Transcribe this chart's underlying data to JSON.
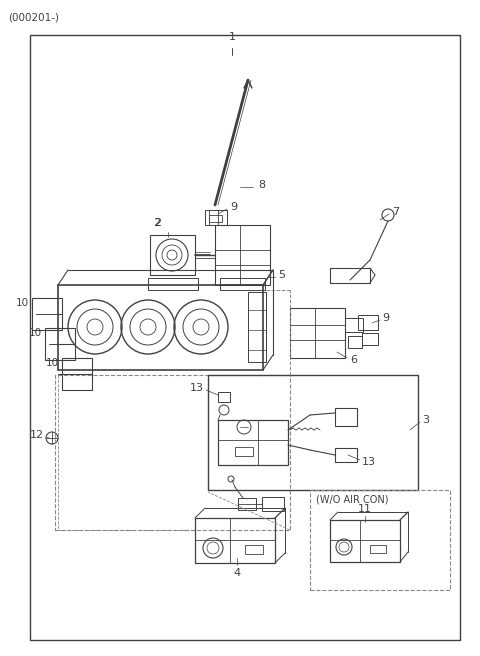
{
  "title": "(000201-)",
  "bg_color": "#ffffff",
  "line_color": "#404040",
  "figsize": [
    4.8,
    6.56
  ],
  "dpi": 100,
  "annotation_label": "(W/O AIR CON)"
}
